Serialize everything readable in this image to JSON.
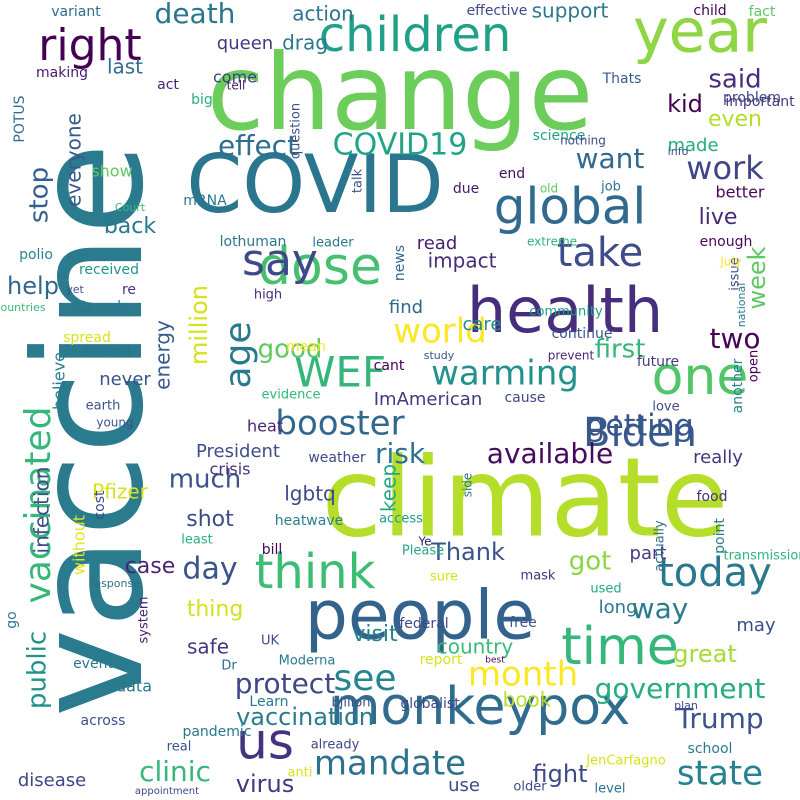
{
  "cloud": {
    "words": [
      {
        "text": "vaccine",
        "color": "#2a7b8e"
      },
      {
        "text": "climate",
        "color": "#b5de2b"
      },
      {
        "text": "change",
        "color": "#6ccd5a"
      },
      {
        "text": "COVID",
        "color": "#2a768e"
      },
      {
        "text": "people",
        "color": "#33628d"
      },
      {
        "text": "health",
        "color": "#472e7c"
      },
      {
        "text": "monkeypox",
        "color": "#2f6c8e"
      },
      {
        "text": "children",
        "color": "#1fa088"
      },
      {
        "text": "year",
        "color": "#8ed645"
      },
      {
        "text": "global",
        "color": "#306a8e"
      },
      {
        "text": "dose",
        "color": "#46c06f"
      },
      {
        "text": "one",
        "color": "#52c569"
      },
      {
        "text": "time",
        "color": "#35b779"
      },
      {
        "text": "us",
        "color": "#46337f"
      },
      {
        "text": "today",
        "color": "#29788e"
      },
      {
        "text": "Biden",
        "color": "#38598c"
      },
      {
        "text": "think",
        "color": "#3dbc74"
      },
      {
        "text": "right",
        "color": "#440154"
      },
      {
        "text": "say",
        "color": "#3e4989"
      },
      {
        "text": "WEF",
        "color": "#34b679"
      },
      {
        "text": "world",
        "color": "#fde725"
      },
      {
        "text": "age",
        "color": "#2a788e"
      },
      {
        "text": "take",
        "color": "#3e4c8a"
      },
      {
        "text": "booster",
        "color": "#31668e"
      },
      {
        "text": "warming",
        "color": "#21918c"
      },
      {
        "text": "state",
        "color": "#26828e"
      },
      {
        "text": "mandate",
        "color": "#2c718e"
      },
      {
        "text": "vaccinated",
        "color": "#35b779"
      },
      {
        "text": "getting",
        "color": "#3a548c"
      },
      {
        "text": "see",
        "color": "#25858e"
      },
      {
        "text": "Trump",
        "color": "#3b528b"
      },
      {
        "text": "work",
        "color": "#414487"
      },
      {
        "text": "government",
        "color": "#27ad81"
      },
      {
        "text": "COVID19",
        "color": "#20a486"
      },
      {
        "text": "month",
        "color": "#fde725"
      },
      {
        "text": "available",
        "color": "#460b5e"
      },
      {
        "text": "want",
        "color": "#31688e"
      },
      {
        "text": "risk",
        "color": "#2c728e"
      },
      {
        "text": "protect",
        "color": "#3f4788"
      },
      {
        "text": "effect",
        "color": "#2e6e8e"
      },
      {
        "text": "day",
        "color": "#3b528b"
      },
      {
        "text": "clinic",
        "color": "#37b878"
      },
      {
        "text": "way",
        "color": "#297a8e"
      },
      {
        "text": "vaccination",
        "color": "#287c8e"
      },
      {
        "text": "public",
        "color": "#21918c"
      },
      {
        "text": "two",
        "color": "#450457"
      },
      {
        "text": "death",
        "color": "#2a768e"
      },
      {
        "text": "good",
        "color": "#5ec962"
      },
      {
        "text": "first",
        "color": "#35b779"
      },
      {
        "text": "much",
        "color": "#3b528b"
      },
      {
        "text": "stop",
        "color": "#355f8d"
      },
      {
        "text": "said",
        "color": "#472d7b"
      },
      {
        "text": "got",
        "color": "#8bd646"
      },
      {
        "text": "million",
        "color": "#d5e21a"
      },
      {
        "text": "kid",
        "color": "#440154"
      },
      {
        "text": "week",
        "color": "#5ec962"
      },
      {
        "text": "help",
        "color": "#31678e"
      },
      {
        "text": "fight",
        "color": "#3e4989"
      },
      {
        "text": "virus",
        "color": "#453882"
      },
      {
        "text": "live",
        "color": "#482878"
      },
      {
        "text": "back",
        "color": "#2a788e"
      },
      {
        "text": "everyone",
        "color": "#38598c"
      },
      {
        "text": "shot",
        "color": "#3e4a89"
      },
      {
        "text": "great",
        "color": "#a5db36"
      },
      {
        "text": "country",
        "color": "#3aba76"
      },
      {
        "text": "case",
        "color": "#482475"
      },
      {
        "text": "thing",
        "color": "#d2e21b"
      },
      {
        "text": "visit",
        "color": "#26818e"
      },
      {
        "text": "Thank",
        "color": "#3b528b"
      },
      {
        "text": "energy",
        "color": "#375a8c"
      },
      {
        "text": "year",
        "color": "#8ed645"
      },
      {
        "text": "action",
        "color": "#2c738e"
      },
      {
        "text": "support",
        "color": "#2a788e"
      },
      {
        "text": "even",
        "color": "#b5de2b"
      },
      {
        "text": "made",
        "color": "#25ac82"
      },
      {
        "text": "last",
        "color": "#2e6f8e"
      },
      {
        "text": "drag",
        "color": "#29798e"
      },
      {
        "text": "impact",
        "color": "#472c7a"
      },
      {
        "text": "care",
        "color": "#23898e"
      },
      {
        "text": "find",
        "color": "#31678e"
      },
      {
        "text": "really",
        "color": "#46337f"
      },
      {
        "text": "lgbtq",
        "color": "#3e4989"
      },
      {
        "text": "President",
        "color": "#3e4c8a"
      },
      {
        "text": "ImAmerican",
        "color": "#453781"
      },
      {
        "text": "better",
        "color": "#46085c"
      },
      {
        "text": "Pfizer",
        "color": "#d8e219"
      },
      {
        "text": "safe",
        "color": "#453781"
      },
      {
        "text": "long",
        "color": "#2a788e"
      },
      {
        "text": "infection",
        "color": "#3e4a89"
      },
      {
        "text": "data",
        "color": "#2a788e"
      },
      {
        "text": "book",
        "color": "#b8de29"
      },
      {
        "text": "part",
        "color": "#443a83"
      },
      {
        "text": "may",
        "color": "#3d4d8a"
      },
      {
        "text": "keep",
        "color": "#22a785"
      },
      {
        "text": "never",
        "color": "#3b528b"
      },
      {
        "text": "show",
        "color": "#5ec962"
      },
      {
        "text": "read",
        "color": "#481f70"
      },
      {
        "text": "queen",
        "color": "#453882"
      },
      {
        "text": "come",
        "color": "#424086"
      },
      {
        "text": "disease",
        "color": "#3f4788"
      },
      {
        "text": "use",
        "color": "#3e4989"
      },
      {
        "text": "heat",
        "color": "#482475"
      },
      {
        "text": "believe",
        "color": "#287d8e"
      },
      {
        "text": "without",
        "color": "#e5e419"
      },
      {
        "text": "go",
        "color": "#2a788e"
      },
      {
        "text": "POTUS",
        "color": "#2e6e8e"
      },
      {
        "text": "crisis",
        "color": "#45337f"
      },
      {
        "text": "cost",
        "color": "#3f4788"
      },
      {
        "text": "heatwave",
        "color": "#27808e"
      },
      {
        "text": "access",
        "color": "#1f9a8a"
      },
      {
        "text": "Ye",
        "color": "#2d1d6e"
      },
      {
        "text": "side",
        "color": "#2a788e"
      },
      {
        "text": "food",
        "color": "#45337f"
      },
      {
        "text": "making",
        "color": "#48196b"
      },
      {
        "text": "act",
        "color": "#482173"
      },
      {
        "text": "tell",
        "color": "#481c6e"
      },
      {
        "text": "big",
        "color": "#29af7f"
      },
      {
        "text": "important",
        "color": "#453882"
      },
      {
        "text": "problem",
        "color": "#404588"
      },
      {
        "text": "Thats",
        "color": "#38598c"
      },
      {
        "text": "science",
        "color": "#1fa287"
      },
      {
        "text": "nothing",
        "color": "#3e4989"
      },
      {
        "text": "question",
        "color": "#3b528b"
      },
      {
        "text": "info",
        "color": "#3e4c8a"
      },
      {
        "text": "child",
        "color": "#440256"
      },
      {
        "text": "fact",
        "color": "#5ec962"
      },
      {
        "text": "effective",
        "color": "#3e4989"
      },
      {
        "text": "variant",
        "color": "#2e6e8e"
      },
      {
        "text": "mRNA",
        "color": "#2a788e"
      },
      {
        "text": "Court",
        "color": "#37b878"
      },
      {
        "text": "lothuman",
        "color": "#2a778e"
      },
      {
        "text": "leader",
        "color": "#2a788e"
      },
      {
        "text": "talk",
        "color": "#3b528b"
      },
      {
        "text": "news",
        "color": "#31668e"
      },
      {
        "text": "end",
        "color": "#460a5d"
      },
      {
        "text": "due",
        "color": "#481a6c"
      },
      {
        "text": "old",
        "color": "#5ec962"
      },
      {
        "text": "job",
        "color": "#2c728e"
      },
      {
        "text": "extreme",
        "color": "#2fb47c"
      },
      {
        "text": "enough",
        "color": "#46085c"
      },
      {
        "text": "polio",
        "color": "#25848e"
      },
      {
        "text": "received",
        "color": "#1f968b"
      },
      {
        "text": "yet",
        "color": "#3b528b"
      },
      {
        "text": "re",
        "color": "#45337f"
      },
      {
        "text": "community",
        "color": "#1fa088"
      },
      {
        "text": "Canada",
        "color": "#2a788e"
      },
      {
        "text": "countries",
        "color": "#35b779"
      },
      {
        "text": "high",
        "color": "#472a79"
      },
      {
        "text": "national",
        "color": "#287c8e"
      },
      {
        "text": "issue",
        "color": "#3e4989"
      },
      {
        "text": "July",
        "color": "#fde725"
      },
      {
        "text": "spread",
        "color": "#d8e219"
      },
      {
        "text": "continue",
        "color": "#3b528b"
      },
      {
        "text": "around",
        "color": "#2d718e"
      },
      {
        "text": "mean",
        "color": "#fde725"
      },
      {
        "text": "study",
        "color": "#3b528b"
      },
      {
        "text": "prevent",
        "color": "#482777"
      },
      {
        "text": "future",
        "color": "#453882"
      },
      {
        "text": "another",
        "color": "#25848e"
      },
      {
        "text": "open",
        "color": "#440154"
      },
      {
        "text": "cant",
        "color": "#440154"
      },
      {
        "text": "evidence",
        "color": "#35b779"
      },
      {
        "text": "cause",
        "color": "#3e4989"
      },
      {
        "text": "love",
        "color": "#3e4989"
      },
      {
        "text": "earth",
        "color": "#3b528b"
      },
      {
        "text": "young",
        "color": "#3b528b"
      },
      {
        "text": "weather",
        "color": "#3e4989"
      },
      {
        "text": "actually",
        "color": "#2e6e8e"
      },
      {
        "text": "point",
        "color": "#2a788e"
      },
      {
        "text": "least",
        "color": "#27ad81"
      },
      {
        "text": "bill",
        "color": "#46085c"
      },
      {
        "text": "Please",
        "color": "#22a884"
      },
      {
        "text": "transmission",
        "color": "#2fb47c"
      },
      {
        "text": "response",
        "color": "#2e6e8e"
      },
      {
        "text": "system",
        "color": "#482173"
      },
      {
        "text": "sure",
        "color": "#d8e219"
      },
      {
        "text": "mask",
        "color": "#46337f"
      },
      {
        "text": "used",
        "color": "#22a884"
      },
      {
        "text": "UK",
        "color": "#3e4989"
      },
      {
        "text": "federal",
        "color": "#3e4a89"
      },
      {
        "text": "free",
        "color": "#3b528b"
      },
      {
        "text": "event",
        "color": "#2a788e"
      },
      {
        "text": "Dr",
        "color": "#2e6e8e"
      },
      {
        "text": "Moderna",
        "color": "#2a788e"
      },
      {
        "text": "report",
        "color": "#d8e219"
      },
      {
        "text": "best",
        "color": "#440154"
      },
      {
        "text": "Learn",
        "color": "#2a788e"
      },
      {
        "text": "billion",
        "color": "#3b528b"
      },
      {
        "text": "globalist",
        "color": "#3e4989"
      },
      {
        "text": "plan",
        "color": "#3e4989"
      },
      {
        "text": "across",
        "color": "#3b528b"
      },
      {
        "text": "pandemic",
        "color": "#2a788e"
      },
      {
        "text": "real",
        "color": "#3b528b"
      },
      {
        "text": "already",
        "color": "#3e4989"
      },
      {
        "text": "school",
        "color": "#2a788e"
      },
      {
        "text": "anti",
        "color": "#d8e219"
      },
      {
        "text": "JenCarfagno",
        "color": "#d8e219"
      },
      {
        "text": "appointment",
        "color": "#3e4989"
      },
      {
        "text": "older",
        "color": "#3e4989"
      },
      {
        "text": "level",
        "color": "#2e6e8e"
      }
    ]
  }
}
